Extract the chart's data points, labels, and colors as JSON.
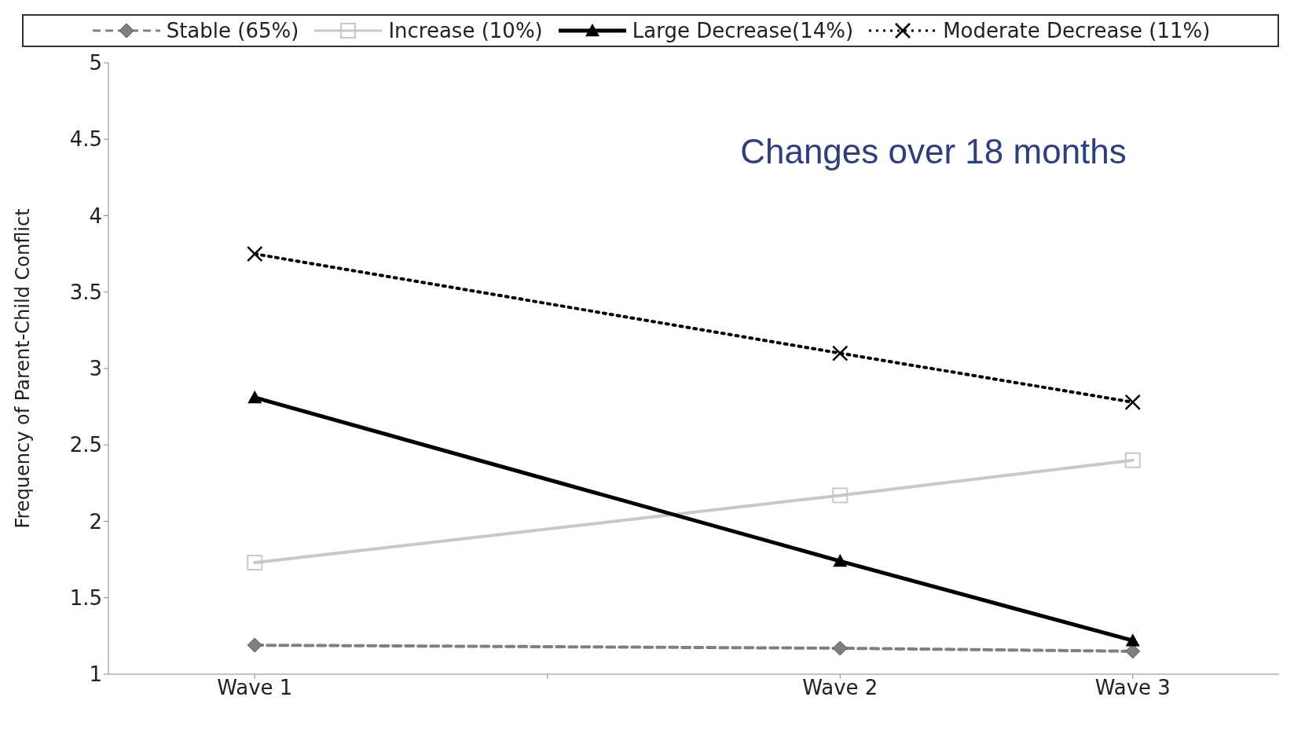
{
  "chart_data": {
    "type": "line",
    "ylabel": "Frequency of Parent-Child Conflict",
    "categories": [
      "Wave 1",
      null,
      "Wave 2",
      "Wave 3"
    ],
    "ylim": [
      1,
      5
    ],
    "yticks": [
      1,
      1.5,
      2,
      2.5,
      3,
      3.5,
      4,
      4.5,
      5
    ],
    "grid": false,
    "legend": "top",
    "annotations": [
      "Changes over 18 months"
    ],
    "series": [
      {
        "name": "Stable (65%)",
        "color": "#808080",
        "marker": "diamond",
        "line_style": "dashed",
        "values": [
          1.19,
          null,
          1.17,
          1.15
        ]
      },
      {
        "name": "Increase (10%)",
        "color": "#c8c8c8",
        "marker": "square",
        "line_style": "solid",
        "values": [
          1.73,
          null,
          2.17,
          2.4
        ]
      },
      {
        "name": "Large Decrease(14%)",
        "color": "#000000",
        "marker": "triangle",
        "line_style": "solid",
        "values": [
          2.81,
          null,
          1.74,
          1.22
        ]
      },
      {
        "name": "Moderate Decrease (11%)",
        "color": "#000000",
        "marker": "cross",
        "line_style": "dotted",
        "values": [
          3.75,
          null,
          3.1,
          2.78
        ]
      }
    ]
  }
}
